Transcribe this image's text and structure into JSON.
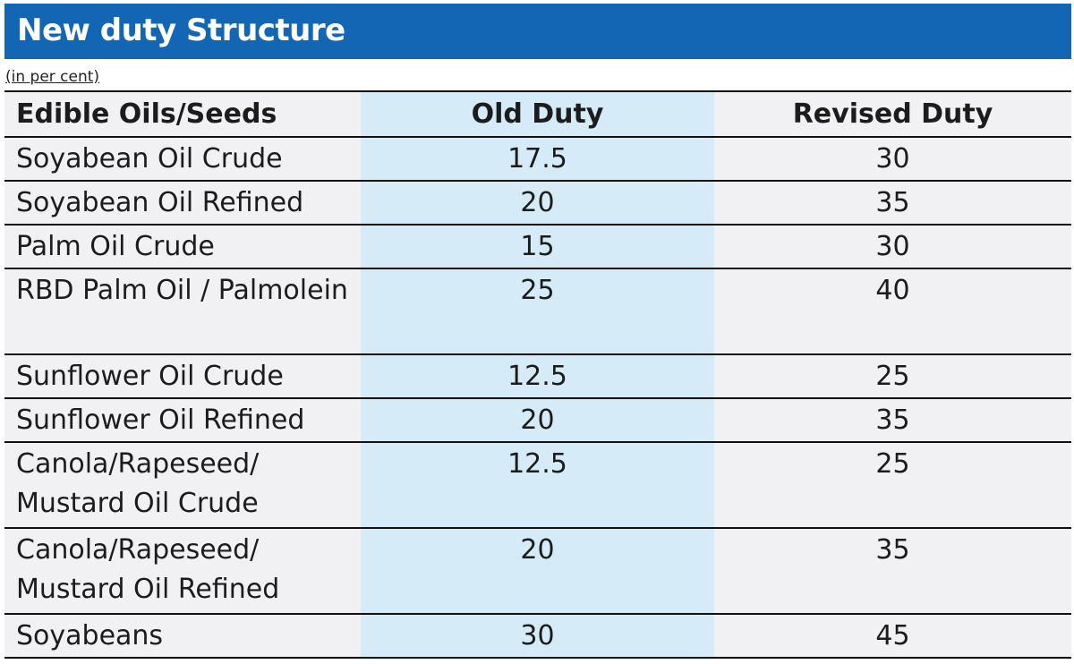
{
  "header": {
    "title": "New duty Structure",
    "unit_note": "(in per cent)"
  },
  "columns": [
    "Edible Oils/Seeds",
    "Old Duty",
    "Revised Duty"
  ],
  "rows": [
    {
      "name": "Soyabean Oil Crude",
      "old": "17.5",
      "revised": "30"
    },
    {
      "name": "Soyabean Oil Refined",
      "old": "20",
      "revised": "35"
    },
    {
      "name": "Palm Oil Crude",
      "old": "15",
      "revised": "30"
    },
    {
      "name": "RBD Palm Oil / Palmolein",
      "old": "25",
      "revised": "40"
    },
    {
      "name": "Sunflower Oil Crude",
      "old": "12.5",
      "revised": "25"
    },
    {
      "name": "Sunflower Oil Refined",
      "old": "20",
      "revised": "35"
    },
    {
      "name": "Canola/Rapeseed/ Mustard Oil Crude",
      "old": "12.5",
      "revised": "25"
    },
    {
      "name": "Canola/Rapeseed/ Mustard Oil Refined",
      "old": "20",
      "revised": "35"
    },
    {
      "name": "Soyabeans",
      "old": "30",
      "revised": "45"
    }
  ],
  "colors": {
    "banner": "#1366b3",
    "highlight_column": "#d5ecf8",
    "row_bg": "#f1f1f3"
  },
  "chart_data": {
    "type": "table",
    "title": "New duty Structure",
    "subtitle": "(in per cent)",
    "columns": [
      "Edible Oils/Seeds",
      "Old Duty",
      "Revised Duty"
    ],
    "categories": [
      "Soyabean Oil Crude",
      "Soyabean Oil Refined",
      "Palm Oil Crude",
      "RBD Palm Oil / Palmolein",
      "Sunflower Oil Crude",
      "Sunflower Oil Refined",
      "Canola/Rapeseed/ Mustard Oil Crude",
      "Canola/Rapeseed/ Mustard Oil Refined",
      "Soyabeans"
    ],
    "series": [
      {
        "name": "Old Duty",
        "values": [
          17.5,
          20,
          15,
          25,
          12.5,
          20,
          12.5,
          20,
          30
        ]
      },
      {
        "name": "Revised Duty",
        "values": [
          30,
          35,
          30,
          40,
          25,
          35,
          25,
          35,
          45
        ]
      }
    ]
  }
}
